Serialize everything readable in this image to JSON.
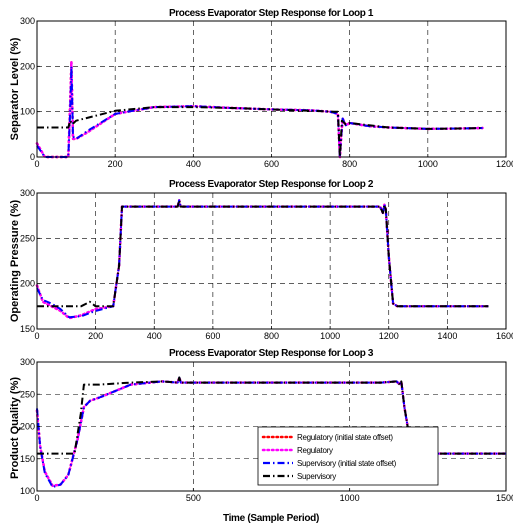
{
  "colors": {
    "regulatory_offset": "#ff0000",
    "regulatory": "#ff00ff",
    "supervisory_offset": "#0000ff",
    "supervisory": "#000000",
    "background": "#ffffff",
    "grid": "#000000"
  },
  "chart_data": [
    {
      "type": "line",
      "title": "Process Evaporator Step Response for Loop 1",
      "xlabel": "",
      "ylabel": "Separator Level (%)",
      "xlim": [
        0,
        1200
      ],
      "ylim": [
        0,
        300
      ],
      "xticks": [
        0,
        200,
        400,
        600,
        800,
        1000,
        1200
      ],
      "yticks": [
        0,
        100,
        200,
        300
      ],
      "grid": true,
      "series": [
        {
          "name": "Regulatory (initial state offset)",
          "color": "#ff0000",
          "style": "dotted",
          "x": [
            0,
            20,
            40,
            60,
            80,
            85,
            88,
            92,
            100,
            130,
            200,
            300,
            400,
            500,
            600,
            700,
            750,
            770,
            775,
            778,
            782,
            790,
            800,
            850,
            900,
            1000,
            1100,
            1140
          ],
          "y": [
            30,
            0,
            -15,
            -15,
            -10,
            120,
            210,
            40,
            40,
            55,
            95,
            110,
            112,
            108,
            105,
            103,
            100,
            95,
            -35,
            40,
            85,
            70,
            75,
            68,
            65,
            62,
            63,
            64
          ]
        },
        {
          "name": "Regulatory",
          "color": "#ff00ff",
          "style": "dotted",
          "x": [
            0,
            20,
            40,
            60,
            80,
            85,
            88,
            92,
            100,
            130,
            200,
            300,
            400,
            500,
            600,
            700,
            750,
            770,
            775,
            778,
            782,
            790,
            800,
            850,
            900,
            1000,
            1100,
            1140
          ],
          "y": [
            30,
            0,
            -15,
            -15,
            -10,
            120,
            210,
            40,
            40,
            55,
            95,
            110,
            112,
            108,
            105,
            103,
            100,
            95,
            -35,
            40,
            85,
            70,
            75,
            68,
            65,
            62,
            63,
            64
          ]
        },
        {
          "name": "Supervisory (initial state offset)",
          "color": "#0000ff",
          "style": "dashdot",
          "x": [
            0,
            20,
            40,
            60,
            80,
            85,
            88,
            92,
            100,
            130,
            200,
            300,
            400,
            500,
            600,
            700,
            750,
            770,
            775,
            778,
            782,
            790,
            800,
            850,
            900,
            1000,
            1100,
            1140
          ],
          "y": [
            25,
            -5,
            -18,
            -15,
            -10,
            100,
            200,
            45,
            40,
            58,
            95,
            110,
            112,
            108,
            105,
            103,
            100,
            95,
            -30,
            40,
            85,
            70,
            75,
            68,
            65,
            62,
            63,
            64
          ]
        },
        {
          "name": "Supervisory",
          "color": "#000000",
          "style": "dashdot",
          "x": [
            0,
            50,
            80,
            85,
            90,
            100,
            200,
            300,
            400,
            500,
            600,
            700,
            760,
            770,
            775,
            780,
            790,
            800,
            850,
            900,
            1000,
            1100,
            1140
          ],
          "y": [
            65,
            65,
            65,
            80,
            72,
            80,
            102,
            110,
            110,
            108,
            105,
            102,
            100,
            100,
            -5,
            80,
            72,
            75,
            70,
            65,
            62,
            63,
            64
          ]
        }
      ]
    },
    {
      "type": "line",
      "title": "Process Evaporator Step Response for Loop 2",
      "xlabel": "",
      "ylabel": "Operating Pressure (%)",
      "xlim": [
        0,
        1600
      ],
      "ylim": [
        150,
        300
      ],
      "xticks": [
        0,
        200,
        400,
        600,
        800,
        1000,
        1200,
        1400,
        1600
      ],
      "yticks": [
        150,
        200,
        250,
        300
      ],
      "grid": true,
      "series": [
        {
          "name": "Regulatory (initial state offset)",
          "color": "#ff0000",
          "style": "dotted",
          "x": [
            0,
            20,
            50,
            80,
            110,
            150,
            200,
            260,
            280,
            290,
            480,
            485,
            490,
            1000,
            1170,
            1180,
            1185,
            1190,
            1200,
            1215,
            1230,
            1300,
            1400,
            1540
          ],
          "y": [
            198,
            180,
            175,
            170,
            162,
            165,
            172,
            175,
            220,
            285,
            285,
            292,
            285,
            285,
            285,
            278,
            287,
            282,
            230,
            178,
            175,
            175,
            175,
            175
          ]
        },
        {
          "name": "Regulatory",
          "color": "#ff00ff",
          "style": "dotted",
          "x": [
            0,
            20,
            50,
            80,
            110,
            150,
            200,
            260,
            280,
            290,
            480,
            485,
            490,
            1000,
            1170,
            1180,
            1185,
            1190,
            1200,
            1215,
            1230,
            1300,
            1400,
            1540
          ],
          "y": [
            198,
            180,
            175,
            170,
            162,
            165,
            172,
            175,
            220,
            285,
            285,
            292,
            285,
            285,
            285,
            278,
            287,
            282,
            230,
            178,
            175,
            175,
            175,
            175
          ]
        },
        {
          "name": "Supervisory (initial state offset)",
          "color": "#0000ff",
          "style": "dashdot",
          "x": [
            0,
            20,
            50,
            80,
            110,
            150,
            200,
            260,
            280,
            290,
            480,
            485,
            490,
            1000,
            1170,
            1180,
            1185,
            1190,
            1200,
            1215,
            1230,
            1300,
            1400,
            1540
          ],
          "y": [
            195,
            182,
            178,
            172,
            163,
            164,
            170,
            175,
            220,
            285,
            285,
            292,
            285,
            285,
            285,
            278,
            287,
            282,
            230,
            178,
            175,
            175,
            175,
            175
          ]
        },
        {
          "name": "Supervisory",
          "color": "#000000",
          "style": "dashdot",
          "x": [
            0,
            150,
            180,
            200,
            260,
            280,
            290,
            480,
            485,
            490,
            1000,
            1170,
            1180,
            1185,
            1190,
            1200,
            1215,
            1230,
            1300,
            1400,
            1540
          ],
          "y": [
            175,
            175,
            180,
            175,
            175,
            220,
            285,
            285,
            292,
            285,
            285,
            285,
            278,
            287,
            282,
            230,
            178,
            175,
            175,
            175,
            175
          ]
        }
      ]
    },
    {
      "type": "line",
      "title": "Process Evaporator Step Response for Loop 3",
      "xlabel": "Time (Sample Period)",
      "ylabel": "Product Quality (%)",
      "xlim": [
        0,
        1500
      ],
      "ylim": [
        100,
        300
      ],
      "xticks": [
        0,
        500,
        1000,
        1500
      ],
      "yticks": [
        100,
        150,
        200,
        250,
        300
      ],
      "grid": true,
      "legend": "bottom-right",
      "series": [
        {
          "name": "Regulatory (initial state offset)",
          "color": "#ff0000",
          "style": "dotted",
          "x": [
            0,
            10,
            25,
            50,
            75,
            100,
            130,
            150,
            170,
            200,
            300,
            400,
            450,
            455,
            460,
            500,
            700,
            900,
            1100,
            1150,
            1160,
            1165,
            1175,
            1200,
            1300,
            1500
          ],
          "y": [
            225,
            170,
            130,
            108,
            110,
            125,
            180,
            230,
            240,
            245,
            265,
            270,
            268,
            276,
            268,
            268,
            268,
            268,
            268,
            270,
            265,
            270,
            230,
            158,
            158,
            158
          ]
        },
        {
          "name": "Regulatory",
          "color": "#ff00ff",
          "style": "dotted",
          "x": [
            0,
            10,
            25,
            50,
            75,
            100,
            130,
            150,
            170,
            200,
            300,
            400,
            450,
            455,
            460,
            500,
            700,
            900,
            1100,
            1150,
            1160,
            1165,
            1175,
            1200,
            1300,
            1500
          ],
          "y": [
            225,
            170,
            130,
            108,
            110,
            125,
            180,
            230,
            240,
            245,
            265,
            270,
            268,
            276,
            268,
            268,
            268,
            268,
            268,
            270,
            265,
            270,
            230,
            158,
            158,
            158
          ]
        },
        {
          "name": "Supervisory (initial state offset)",
          "color": "#0000ff",
          "style": "dashdot",
          "x": [
            0,
            10,
            25,
            50,
            75,
            100,
            130,
            150,
            170,
            200,
            300,
            400,
            450,
            455,
            460,
            500,
            700,
            900,
            1100,
            1150,
            1160,
            1165,
            1175,
            1200,
            1300,
            1500
          ],
          "y": [
            228,
            170,
            128,
            106,
            110,
            125,
            180,
            230,
            240,
            245,
            265,
            270,
            268,
            276,
            268,
            268,
            268,
            268,
            268,
            270,
            265,
            270,
            230,
            158,
            158,
            158
          ]
        },
        {
          "name": "Supervisory",
          "color": "#000000",
          "style": "dashdot",
          "x": [
            0,
            100,
            120,
            140,
            150,
            200,
            300,
            400,
            450,
            455,
            460,
            500,
            700,
            900,
            1100,
            1150,
            1160,
            1165,
            1175,
            1200,
            1300,
            1500
          ],
          "y": [
            158,
            158,
            158,
            220,
            265,
            265,
            268,
            270,
            268,
            276,
            268,
            268,
            268,
            268,
            268,
            270,
            265,
            270,
            230,
            158,
            158,
            158
          ]
        }
      ]
    }
  ]
}
